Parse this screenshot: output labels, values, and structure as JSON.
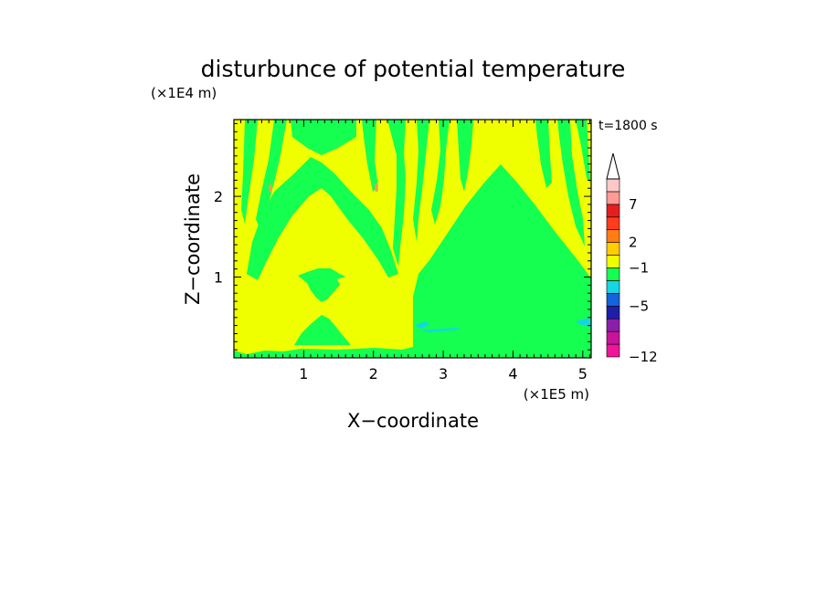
{
  "chart_data": {
    "type": "heatmap",
    "title": "disturbunce of potential temperature",
    "xlabel": "X−coordinate",
    "ylabel": "Z−coordinate",
    "x_unit": "(×1E5 m)",
    "y_unit": "(×1E4 m)",
    "time_label": "t=1800 s",
    "xlim": [
      0,
      5.12
    ],
    "ylim": [
      0,
      2.95
    ],
    "x_ticks": [
      1,
      2,
      3,
      4,
      5
    ],
    "y_ticks": [
      1,
      2
    ],
    "colorbar": {
      "tick_labels": [
        "7",
        "2",
        "−1",
        "−5",
        "−12"
      ],
      "levels": [
        {
          "color": "#f0149b"
        },
        {
          "color": "#c8149b"
        },
        {
          "color": "#8c1eaa"
        },
        {
          "color": "#1e1eaa"
        },
        {
          "color": "#1464dc"
        },
        {
          "color": "#14d7e1"
        },
        {
          "color": "#14ff50"
        },
        {
          "color": "#f0ff00"
        },
        {
          "color": "#ffcd00"
        },
        {
          "color": "#ff7d14"
        },
        {
          "color": "#ff3c1e"
        },
        {
          "color": "#e61e1e"
        },
        {
          "color": "#ff9b96"
        },
        {
          "color": "#ffc8c8"
        }
      ]
    },
    "field_colors": {
      "background": "#f0ff00",
      "green": "#14ff50",
      "cyan": "#14d7e1",
      "orange": "#ff9b50"
    }
  }
}
